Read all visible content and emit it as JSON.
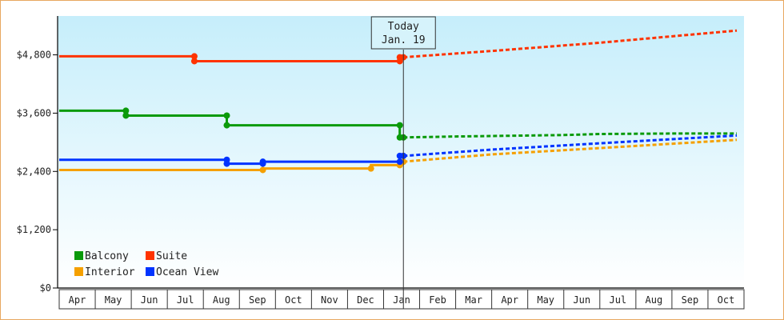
{
  "chart_data": {
    "type": "line",
    "today_label": "Today",
    "today_date": "Jan. 19",
    "x_categories": [
      "Apr",
      "May",
      "Jun",
      "Jul",
      "Aug",
      "Sep",
      "Oct",
      "Nov",
      "Dec",
      "Jan",
      "Feb",
      "Mar",
      "Apr",
      "May",
      "Jun",
      "Jul",
      "Aug",
      "Sep",
      "Oct"
    ],
    "y_ticks": [
      "$0",
      "$1,200",
      "$2,400",
      "$3,600",
      "$4,800"
    ],
    "y_tick_values": [
      0,
      1200,
      2400,
      3600,
      4800
    ],
    "ylim": [
      0,
      5600
    ],
    "today_x": 9.55,
    "legend_position": "bottom-left",
    "series": [
      {
        "name": "Balcony",
        "color": "#0a9a0a",
        "historical": [
          [
            0,
            3650
          ],
          [
            1.85,
            3650
          ],
          [
            1.85,
            3550
          ],
          [
            4.65,
            3550
          ],
          [
            4.65,
            3350
          ],
          [
            9.45,
            3350
          ],
          [
            9.45,
            3100
          ],
          [
            9.55,
            3100
          ]
        ],
        "markers": [
          [
            1.85,
            3650
          ],
          [
            1.85,
            3550
          ],
          [
            4.65,
            3550
          ],
          [
            4.65,
            3350
          ],
          [
            9.45,
            3350
          ],
          [
            9.45,
            3100
          ],
          [
            9.55,
            3100
          ]
        ],
        "forecast": [
          [
            9.55,
            3100
          ],
          [
            11,
            3120
          ],
          [
            14,
            3150
          ],
          [
            15,
            3170
          ],
          [
            17,
            3180
          ],
          [
            18.8,
            3180
          ]
        ]
      },
      {
        "name": "Suite",
        "color": "#ff3300",
        "historical": [
          [
            0,
            4770
          ],
          [
            3.75,
            4770
          ],
          [
            3.75,
            4670
          ],
          [
            9.45,
            4670
          ],
          [
            9.45,
            4750
          ],
          [
            9.55,
            4750
          ]
        ],
        "markers": [
          [
            3.75,
            4770
          ],
          [
            3.75,
            4670
          ],
          [
            9.45,
            4670
          ],
          [
            9.45,
            4750
          ],
          [
            9.55,
            4750
          ]
        ],
        "forecast": [
          [
            9.55,
            4750
          ],
          [
            12,
            4880
          ],
          [
            15,
            5050
          ],
          [
            18.8,
            5300
          ]
        ]
      },
      {
        "name": "Interior",
        "color": "#f5a000",
        "historical": [
          [
            0,
            2430
          ],
          [
            5.65,
            2430
          ],
          [
            5.65,
            2460
          ],
          [
            8.65,
            2460
          ],
          [
            8.65,
            2530
          ],
          [
            9.45,
            2530
          ],
          [
            9.45,
            2600
          ],
          [
            9.55,
            2600
          ]
        ],
        "markers": [
          [
            5.65,
            2430
          ],
          [
            8.65,
            2460
          ],
          [
            9.45,
            2530
          ],
          [
            9.45,
            2600
          ],
          [
            9.55,
            2600
          ]
        ],
        "forecast": [
          [
            9.55,
            2600
          ],
          [
            12,
            2750
          ],
          [
            15,
            2880
          ],
          [
            18.8,
            3050
          ]
        ]
      },
      {
        "name": "Ocean View",
        "color": "#0033ff",
        "historical": [
          [
            0,
            2640
          ],
          [
            4.65,
            2640
          ],
          [
            4.65,
            2560
          ],
          [
            5.65,
            2560
          ],
          [
            5.65,
            2600
          ],
          [
            9.45,
            2600
          ],
          [
            9.45,
            2720
          ],
          [
            9.55,
            2720
          ]
        ],
        "markers": [
          [
            4.65,
            2640
          ],
          [
            4.65,
            2560
          ],
          [
            5.65,
            2560
          ],
          [
            5.65,
            2600
          ],
          [
            9.45,
            2600
          ],
          [
            9.45,
            2720
          ],
          [
            9.55,
            2720
          ]
        ],
        "forecast": [
          [
            9.55,
            2720
          ],
          [
            12,
            2850
          ],
          [
            15,
            2980
          ],
          [
            18.8,
            3140
          ]
        ]
      }
    ]
  }
}
